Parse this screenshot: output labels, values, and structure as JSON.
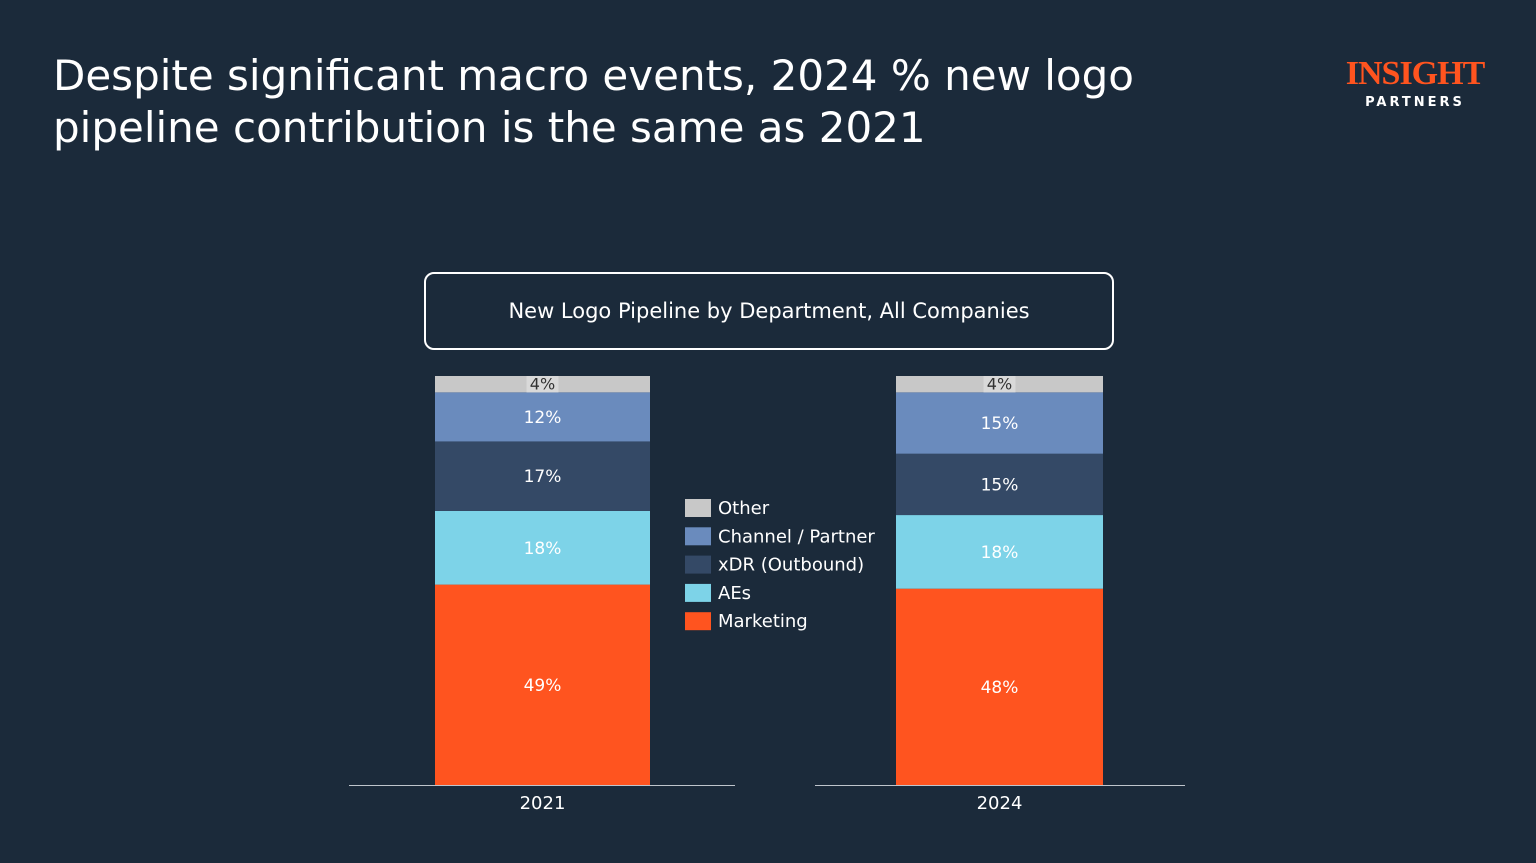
{
  "header": {
    "title": "Despite significant macro events, 2024 % new logo pipeline contribution is the same as 2021",
    "logo": "INSIGHT",
    "logo_sub": "PARTNERS"
  },
  "chart_data": {
    "type": "stacked_bar",
    "title": "New Logo Pipeline by Department, All Companies",
    "categories": [
      "2021",
      "2024"
    ],
    "series": [
      {
        "name": "Marketing",
        "color": "#ff541f",
        "values": [
          49,
          48
        ],
        "value_labels": [
          "49%",
          "48%"
        ]
      },
      {
        "name": "AEs",
        "color": "#7dd3e8",
        "values": [
          18,
          18
        ],
        "value_labels": [
          "18%",
          "18%"
        ]
      },
      {
        "name": "xDR (Outbound)",
        "color": "#344966",
        "values": [
          17,
          15
        ],
        "value_labels": [
          "17%",
          "15%"
        ]
      },
      {
        "name": "Channel / Partner",
        "color": "#6a8bbd",
        "values": [
          12,
          15
        ],
        "value_labels": [
          "12%",
          "15%"
        ]
      },
      {
        "name": "Other",
        "color": "#c8c8c8",
        "values": [
          4,
          4
        ],
        "value_labels": [
          "4%",
          "4%"
        ]
      }
    ]
  }
}
